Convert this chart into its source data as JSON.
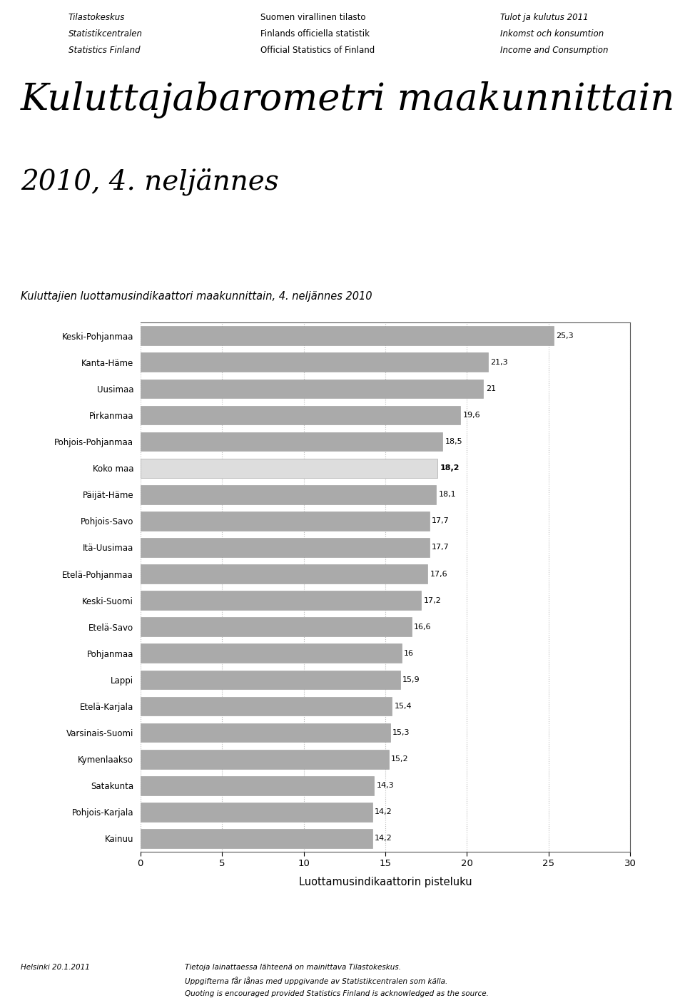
{
  "title_main": "Kuluttajabarometri maakunnittain",
  "title_sub": "2010, 4. neljännes",
  "chart_title": "Kuluttajien luottamusindikaattori maakunnittain, 4. neljännes 2010",
  "xlabel": "Luottamusindikaattorin pisteluku",
  "categories": [
    "Keski-Pohjanmaa",
    "Kanta-Häme",
    "Uusimaa",
    "Pirkanmaa",
    "Pohjois-Pohjanmaa",
    "Koko maa",
    "Päijät-Häme",
    "Pohjois-Savo",
    "Itä-Uusimaa",
    "Etelä-Pohjanmaa",
    "Keski-Suomi",
    "Etelä-Savo",
    "Pohjanmaa",
    "Lappi",
    "Etelä-Karjala",
    "Varsinais-Suomi",
    "Kymenlaakso",
    "Satakunta",
    "Pohjois-Karjala",
    "Kainuu"
  ],
  "values": [
    25.3,
    21.3,
    21.0,
    19.6,
    18.5,
    18.2,
    18.1,
    17.7,
    17.7,
    17.6,
    17.2,
    16.6,
    16.0,
    15.9,
    15.4,
    15.3,
    15.2,
    14.3,
    14.2,
    14.2
  ],
  "value_labels": [
    "25,3",
    "21,3",
    "21",
    "19,6",
    "18,5",
    "18,2",
    "18,1",
    "17,7",
    "17,7",
    "17,6",
    "17,2",
    "16,6",
    "16",
    "15,9",
    "15,4",
    "15,3",
    "15,2",
    "14,3",
    "14,2",
    "14,2"
  ],
  "bar_colors": [
    "#aaaaaa",
    "#aaaaaa",
    "#aaaaaa",
    "#aaaaaa",
    "#aaaaaa",
    "#dddddd",
    "#aaaaaa",
    "#aaaaaa",
    "#aaaaaa",
    "#aaaaaa",
    "#aaaaaa",
    "#aaaaaa",
    "#aaaaaa",
    "#aaaaaa",
    "#aaaaaa",
    "#aaaaaa",
    "#aaaaaa",
    "#aaaaaa",
    "#aaaaaa",
    "#aaaaaa"
  ],
  "koko_maa_index": 5,
  "xlim": [
    0,
    30
  ],
  "xticks": [
    0,
    5,
    10,
    15,
    20,
    25,
    30
  ],
  "header_left_line1": "Tilastokeskus",
  "header_left_line2": "Statistikcentralen",
  "header_left_line3": "Statistics Finland",
  "header_mid_line1": "Suomen virallinen tilasto",
  "header_mid_line2": "Finlands officiella statistik",
  "header_mid_line3": "Official Statistics of Finland",
  "header_right_line1": "Tulot ja kulutus 2011",
  "header_right_line2": "Inkomst och konsumtion",
  "header_right_line3": "Income and Consumption",
  "footer_left": "Helsinki 20.1.2011",
  "footer_mid_line1": "Tietoja lainattaessa lähteenä on mainittava Tilastokeskus.",
  "footer_mid_line2": "Uppgifterna får lånas med uppgivande av Statistikcentralen som källa.",
  "footer_mid_line3": "Quoting is encouraged provided Statistics Finland is acknowledged as the source.",
  "bg_color": "#ffffff",
  "grid_color": "#bbbbbb"
}
